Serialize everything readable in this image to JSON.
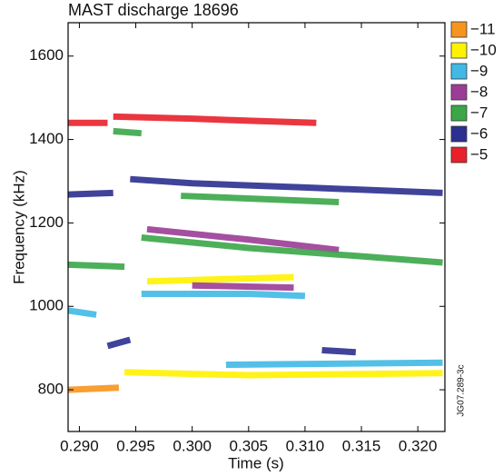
{
  "chart_data": {
    "type": "spectrogram",
    "title": "MAST discharge 18696",
    "xlabel": "Time (s)",
    "ylabel": "Frequency (kHz)",
    "annotation": "JG07.289-3c",
    "xlim": [
      0.289,
      0.3224
    ],
    "ylim": [
      700,
      1680
    ],
    "xticks": [
      {
        "value": 0.29,
        "label": "0.290"
      },
      0.295,
      {
        "value": 0.3,
        "label": "0.300"
      },
      0.305,
      {
        "value": 0.31,
        "label": "0.310"
      },
      0.315,
      {
        "value": 0.32,
        "label": "0.320"
      }
    ],
    "yticks": [
      800,
      1000,
      1200,
      1400,
      1600
    ],
    "series": [
      {
        "name": "−11",
        "color": "#f7941d",
        "x": [
          0.289,
          0.2935
        ],
        "values": [
          800,
          805
        ]
      },
      {
        "name": "−10",
        "color": "#fff200",
        "x": [
          0.294,
          0.305,
          0.3222,
          null,
          0.296,
          0.309
        ],
        "values": [
          842,
          835,
          840,
          null,
          1060,
          1070
        ]
      },
      {
        "name": "−9",
        "color": "#40b9e6",
        "x": [
          0.2955,
          0.305,
          0.31,
          null,
          0.303,
          0.3222,
          null,
          0.289,
          0.2915
        ],
        "values": [
          1030,
          1030,
          1025,
          null,
          860,
          865,
          null,
          990,
          980
        ]
      },
      {
        "name": "−8",
        "color": "#9b3c97",
        "x": [
          0.296,
          0.305,
          0.313,
          null,
          0.3,
          0.309
        ],
        "values": [
          1185,
          1160,
          1135,
          null,
          1050,
          1045
        ]
      },
      {
        "name": "−7",
        "color": "#3aa648",
        "x": [
          0.289,
          0.294,
          null,
          0.2955,
          0.305,
          0.315,
          0.3222,
          null,
          0.293,
          0.2955,
          null,
          0.299,
          0.313
        ],
        "values": [
          1100,
          1095,
          null,
          1165,
          1140,
          1120,
          1105,
          null,
          1420,
          1415,
          null,
          1265,
          1250
        ]
      },
      {
        "name": "−6",
        "color": "#2b2f8f",
        "x": [
          0.289,
          0.293,
          null,
          0.2945,
          0.3,
          0.31,
          0.3222,
          null,
          0.2925,
          0.2945,
          null,
          0.3115,
          0.3145
        ],
        "values": [
          1268,
          1272,
          null,
          1305,
          1295,
          1285,
          1272,
          null,
          905,
          920,
          null,
          895,
          890
        ]
      },
      {
        "name": "−5",
        "color": "#e8202a",
        "x": [
          0.289,
          0.2925,
          null,
          0.293,
          0.3,
          0.305,
          0.311
        ],
        "values": [
          1440,
          1440,
          null,
          1455,
          1450,
          1445,
          1440
        ]
      }
    ]
  }
}
